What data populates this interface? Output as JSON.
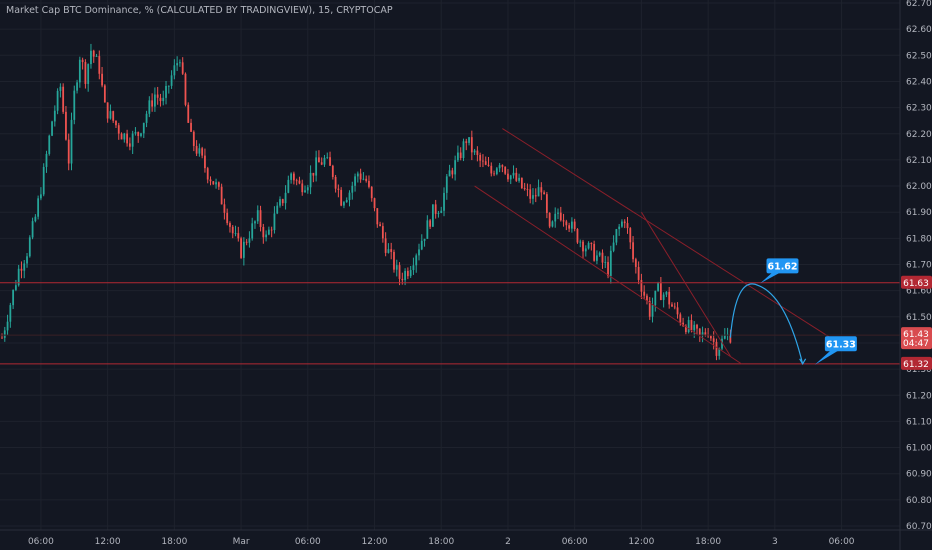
{
  "legend": "Market Cap BTC Dominance, % (CALCULATED BY TRADINGVIEW), 15, CRYPTOCAP",
  "chart_data": {
    "type": "candlestick",
    "title": "Market Cap BTC Dominance, % (CALCULATED BY TRADINGVIEW), 15, CRYPTOCAP",
    "ylim": [
      60.7,
      62.7
    ],
    "y_ticks": [
      "62.70",
      "62.60",
      "62.50",
      "62.40",
      "62.30",
      "62.20",
      "62.10",
      "62.00",
      "61.90",
      "61.80",
      "61.70",
      "61.60",
      "61.50",
      "61.40",
      "61.30",
      "61.20",
      "61.10",
      "61.00",
      "60.90",
      "60.80",
      "60.70"
    ],
    "y_tick_values": [
      62.7,
      62.6,
      62.5,
      62.4,
      62.3,
      62.2,
      62.1,
      62.0,
      61.9,
      61.8,
      61.7,
      61.6,
      61.5,
      61.4,
      61.3,
      61.2,
      61.1,
      61.0,
      60.9,
      60.8,
      60.7
    ],
    "x_ticks": [
      {
        "label": "06:00",
        "bar": 14
      },
      {
        "label": "12:00",
        "bar": 38
      },
      {
        "label": "18:00",
        "bar": 62
      },
      {
        "label": "Mar",
        "bar": 86
      },
      {
        "label": "06:00",
        "bar": 110
      },
      {
        "label": "12:00",
        "bar": 134
      },
      {
        "label": "18:00",
        "bar": 158
      },
      {
        "label": "2",
        "bar": 182
      },
      {
        "label": "06:00",
        "bar": 206
      },
      {
        "label": "12:00",
        "bar": 230
      },
      {
        "label": "18:00",
        "bar": 254
      },
      {
        "label": "3",
        "bar": 278
      },
      {
        "label": "06:00",
        "bar": 302
      }
    ],
    "bar_count": 310,
    "close_path": [
      [
        0,
        61.42
      ],
      [
        3,
        61.55
      ],
      [
        6,
        61.68
      ],
      [
        9,
        61.75
      ],
      [
        12,
        61.88
      ],
      [
        15,
        62.05
      ],
      [
        18,
        62.25
      ],
      [
        21,
        62.38
      ],
      [
        24,
        62.1
      ],
      [
        26,
        62.35
      ],
      [
        28,
        62.5
      ],
      [
        30,
        62.42
      ],
      [
        32,
        62.52
      ],
      [
        35,
        62.45
      ],
      [
        37,
        62.3
      ],
      [
        40,
        62.25
      ],
      [
        43,
        62.2
      ],
      [
        46,
        62.18
      ],
      [
        49,
        62.2
      ],
      [
        52,
        62.28
      ],
      [
        55,
        62.35
      ],
      [
        58,
        62.32
      ],
      [
        61,
        62.42
      ],
      [
        64,
        62.5
      ],
      [
        66,
        62.3
      ],
      [
        68,
        62.18
      ],
      [
        71,
        62.12
      ],
      [
        74,
        62.05
      ],
      [
        77,
        62.0
      ],
      [
        80,
        61.92
      ],
      [
        83,
        61.82
      ],
      [
        86,
        61.75
      ],
      [
        89,
        61.82
      ],
      [
        92,
        61.88
      ],
      [
        95,
        61.8
      ],
      [
        98,
        61.88
      ],
      [
        101,
        61.95
      ],
      [
        104,
        62.05
      ],
      [
        107,
        62.0
      ],
      [
        110,
        62.02
      ],
      [
        113,
        62.08
      ],
      [
        116,
        62.1
      ],
      [
        119,
        62.05
      ],
      [
        122,
        61.95
      ],
      [
        125,
        61.98
      ],
      [
        128,
        62.05
      ],
      [
        131,
        62.02
      ],
      [
        134,
        61.9
      ],
      [
        137,
        61.8
      ],
      [
        140,
        61.72
      ],
      [
        143,
        61.65
      ],
      [
        146,
        61.68
      ],
      [
        149,
        61.75
      ],
      [
        152,
        61.82
      ],
      [
        155,
        61.9
      ],
      [
        158,
        61.93
      ],
      [
        161,
        62.05
      ],
      [
        164,
        62.1
      ],
      [
        167,
        62.18
      ],
      [
        170,
        62.12
      ],
      [
        173,
        62.08
      ],
      [
        176,
        62.05
      ],
      [
        179,
        62.1
      ],
      [
        182,
        62.05
      ],
      [
        185,
        62.02
      ],
      [
        188,
        61.98
      ],
      [
        191,
        61.95
      ],
      [
        194,
        62.0
      ],
      [
        197,
        61.82
      ],
      [
        200,
        61.9
      ],
      [
        203,
        61.88
      ],
      [
        206,
        61.82
      ],
      [
        209,
        61.78
      ],
      [
        212,
        61.75
      ],
      [
        215,
        61.72
      ],
      [
        218,
        61.68
      ],
      [
        221,
        61.82
      ],
      [
        224,
        61.88
      ],
      [
        227,
        61.72
      ],
      [
        230,
        61.62
      ],
      [
        233,
        61.52
      ],
      [
        236,
        61.6
      ],
      [
        239,
        61.58
      ],
      [
        242,
        61.52
      ],
      [
        245,
        61.48
      ],
      [
        248,
        61.45
      ],
      [
        251,
        61.42
      ],
      [
        254,
        61.45
      ],
      [
        257,
        61.38
      ],
      [
        260,
        61.42
      ],
      [
        262,
        61.43
      ]
    ],
    "horizontal_levels": [
      {
        "value": 61.63,
        "label": "61.63"
      },
      {
        "value": 61.32,
        "label": "61.32"
      }
    ],
    "current_price": {
      "value": 61.43,
      "label": "61.43",
      "countdown": "04:47"
    },
    "projection_labels": [
      {
        "value": 61.62,
        "label": "61.62"
      },
      {
        "value": 61.33,
        "label": "61.33"
      }
    ],
    "colors": {
      "background": "#131722",
      "up": "#26a69a",
      "down": "#ef5350",
      "grid": "#1e222d",
      "level_line": "#b22833",
      "channel_line": "#8a1f2a",
      "projection": "#2fa4e7",
      "bubble": "#2196f3",
      "axis_text": "#b2b5be"
    }
  }
}
